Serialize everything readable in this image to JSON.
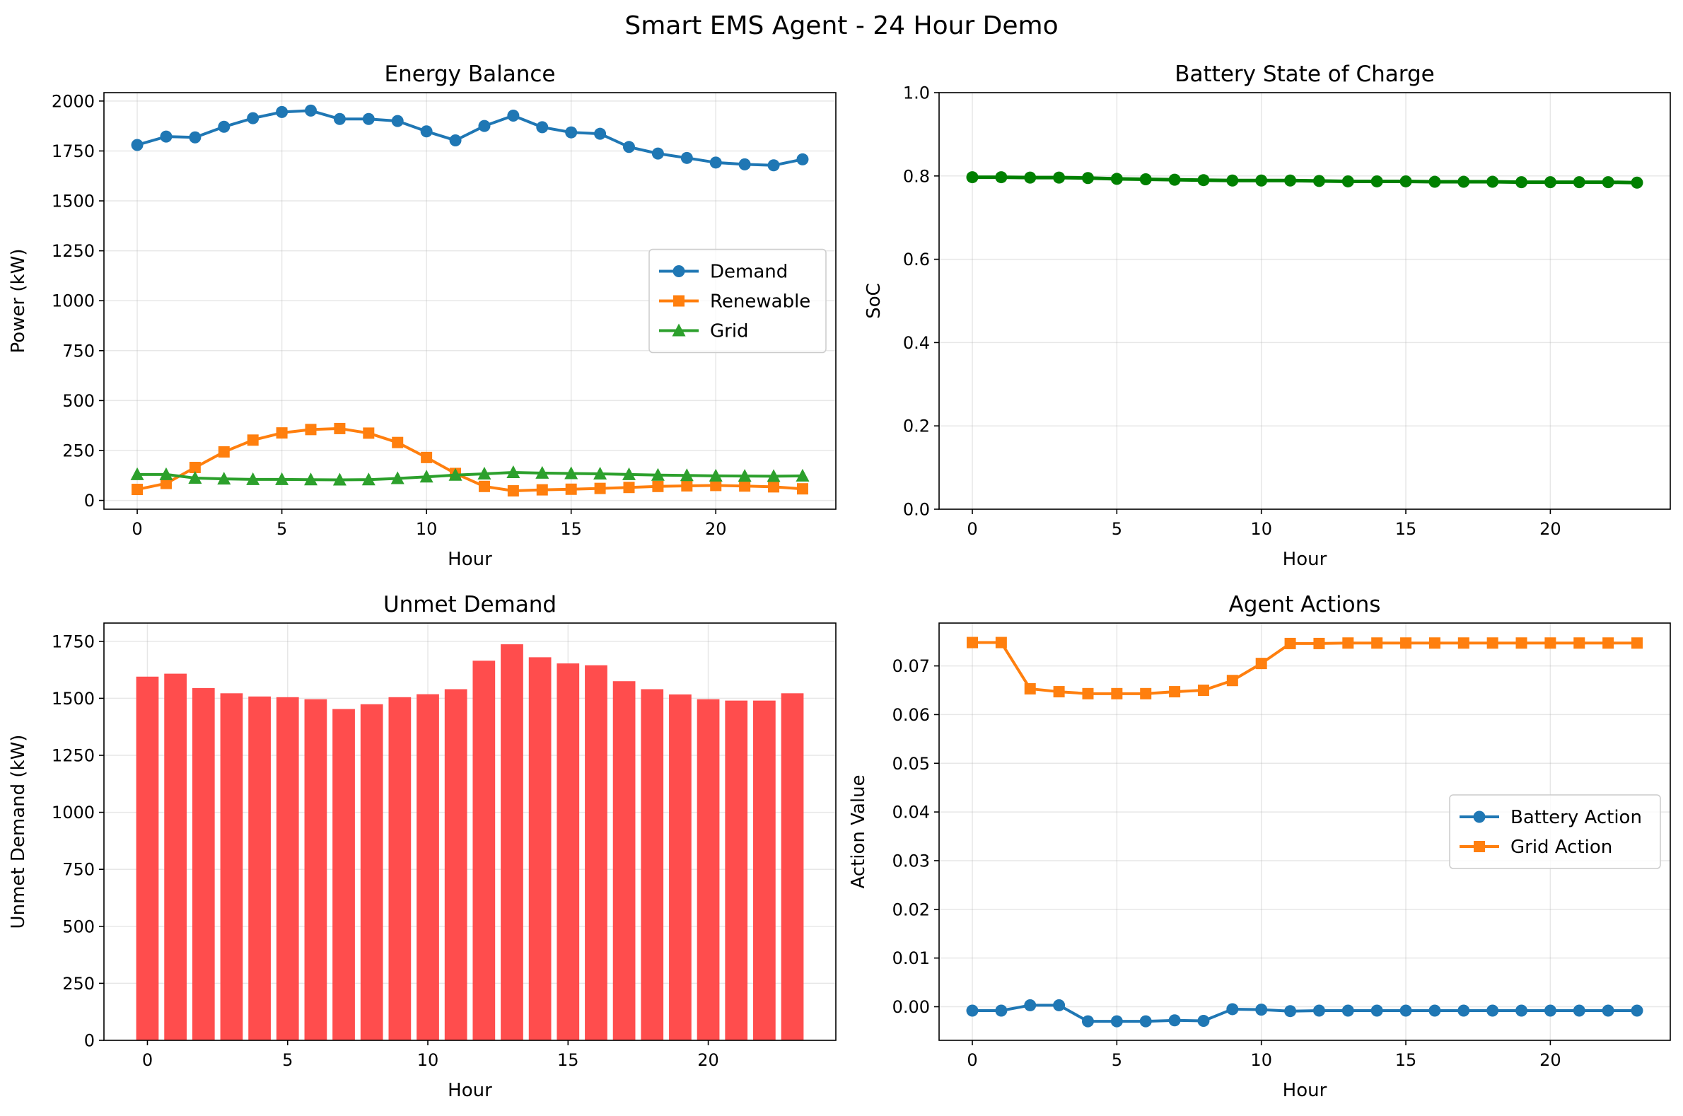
{
  "figure": {
    "title": "Smart EMS Agent - 24 Hour Demo"
  },
  "chart_data": [
    {
      "id": "energy",
      "type": "line",
      "title": "Energy Balance",
      "xlabel": "Hour",
      "ylabel": "Power (kW)",
      "xlim": [
        -1.15,
        24.15
      ],
      "ylim": [
        -44,
        2042
      ],
      "xticks": [
        0,
        5,
        10,
        15,
        20
      ],
      "yticks": [
        0,
        250,
        500,
        750,
        1000,
        1250,
        1500,
        1750,
        2000
      ],
      "grid": true,
      "legend": "center-right",
      "x": [
        0,
        1,
        2,
        3,
        4,
        5,
        6,
        7,
        8,
        9,
        10,
        11,
        12,
        13,
        14,
        15,
        16,
        17,
        18,
        19,
        20,
        21,
        22,
        23
      ],
      "series": [
        {
          "name": "Demand",
          "color": "#1f77b4",
          "marker": "circle",
          "values": [
            1780,
            1822,
            1818,
            1871,
            1914,
            1945,
            1952,
            1910,
            1910,
            1900,
            1848,
            1803,
            1875,
            1927,
            1869,
            1843,
            1836,
            1770,
            1737,
            1715,
            1692,
            1683,
            1678,
            1708
          ]
        },
        {
          "name": "Renewable",
          "color": "#ff7f0e",
          "marker": "square",
          "values": [
            55,
            85,
            165,
            243,
            302,
            338,
            355,
            360,
            337,
            290,
            215,
            135,
            70,
            48,
            53,
            56,
            60,
            65,
            70,
            73,
            75,
            72,
            68,
            58
          ]
        },
        {
          "name": "Grid",
          "color": "#2ca02c",
          "marker": "triangle",
          "values": [
            130,
            130,
            112,
            108,
            105,
            105,
            104,
            103,
            104,
            110,
            118,
            127,
            133,
            140,
            137,
            135,
            133,
            130,
            127,
            125,
            123,
            122,
            121,
            123
          ]
        }
      ]
    },
    {
      "id": "soc",
      "type": "line",
      "title": "Battery State of Charge",
      "xlabel": "Hour",
      "ylabel": "SoC",
      "xlim": [
        -1.15,
        24.15
      ],
      "ylim": [
        0,
        1
      ],
      "xticks": [
        0,
        5,
        10,
        15,
        20
      ],
      "yticks": [
        0.0,
        0.2,
        0.4,
        0.6,
        0.8,
        1.0
      ],
      "yticklabels": [
        "0.0",
        "0.2",
        "0.4",
        "0.6",
        "0.8",
        "1.0"
      ],
      "grid": true,
      "x": [
        0,
        1,
        2,
        3,
        4,
        5,
        6,
        7,
        8,
        9,
        10,
        11,
        12,
        13,
        14,
        15,
        16,
        17,
        18,
        19,
        20,
        21,
        22,
        23
      ],
      "series": [
        {
          "name": "",
          "color": "#008000",
          "marker": "circle",
          "values": [
            0.797,
            0.797,
            0.796,
            0.796,
            0.795,
            0.793,
            0.792,
            0.791,
            0.79,
            0.789,
            0.789,
            0.789,
            0.788,
            0.787,
            0.787,
            0.787,
            0.786,
            0.786,
            0.786,
            0.785,
            0.785,
            0.785,
            0.785,
            0.784
          ]
        }
      ]
    },
    {
      "id": "unmet",
      "type": "bar",
      "title": "Unmet Demand",
      "xlabel": "Hour",
      "ylabel": "Unmet Demand (kW)",
      "xlim": [
        -1.55,
        24.55
      ],
      "ylim": [
        0,
        1830
      ],
      "xticks": [
        0,
        5,
        10,
        15,
        20
      ],
      "yticks": [
        0,
        250,
        500,
        750,
        1000,
        1250,
        1500,
        1750
      ],
      "grid": true,
      "color": "#ff4d4d",
      "x": [
        0,
        1,
        2,
        3,
        4,
        5,
        6,
        7,
        8,
        9,
        10,
        11,
        12,
        13,
        14,
        15,
        16,
        17,
        18,
        19,
        20,
        21,
        22,
        23
      ],
      "values": [
        1595,
        1608,
        1545,
        1522,
        1508,
        1505,
        1496,
        1453,
        1474,
        1505,
        1518,
        1540,
        1665,
        1737,
        1680,
        1653,
        1645,
        1575,
        1540,
        1517,
        1496,
        1490,
        1490,
        1522
      ]
    },
    {
      "id": "actions",
      "type": "line",
      "title": "Agent Actions",
      "xlabel": "Hour",
      "ylabel": "Action Value",
      "xlim": [
        -1.15,
        24.15
      ],
      "ylim": [
        -0.0069,
        0.0788
      ],
      "xticks": [
        0,
        5,
        10,
        15,
        20
      ],
      "yticks": [
        0.0,
        0.01,
        0.02,
        0.03,
        0.04,
        0.05,
        0.06,
        0.07
      ],
      "yticklabels": [
        "0.00",
        "0.01",
        "0.02",
        "0.03",
        "0.04",
        "0.05",
        "0.06",
        "0.07"
      ],
      "grid": true,
      "legend": "center-right",
      "x": [
        0,
        1,
        2,
        3,
        4,
        5,
        6,
        7,
        8,
        9,
        10,
        11,
        12,
        13,
        14,
        15,
        16,
        17,
        18,
        19,
        20,
        21,
        22,
        23
      ],
      "series": [
        {
          "name": "Battery Action",
          "color": "#1f77b4",
          "marker": "circle",
          "values": [
            -0.0008,
            -0.0008,
            0.0003,
            0.0003,
            -0.003,
            -0.003,
            -0.003,
            -0.0028,
            -0.0029,
            -0.0005,
            -0.0006,
            -0.0009,
            -0.0008,
            -0.0008,
            -0.0008,
            -0.0008,
            -0.0008,
            -0.0008,
            -0.0008,
            -0.0008,
            -0.0008,
            -0.0008,
            -0.0008,
            -0.0008
          ]
        },
        {
          "name": "Grid Action",
          "color": "#ff7f0e",
          "marker": "square",
          "values": [
            0.0748,
            0.0748,
            0.0653,
            0.0647,
            0.0643,
            0.0643,
            0.0643,
            0.0647,
            0.065,
            0.067,
            0.0705,
            0.0746,
            0.0746,
            0.0747,
            0.0747,
            0.0747,
            0.0747,
            0.0747,
            0.0747,
            0.0747,
            0.0747,
            0.0747,
            0.0747,
            0.0747
          ]
        }
      ]
    }
  ]
}
